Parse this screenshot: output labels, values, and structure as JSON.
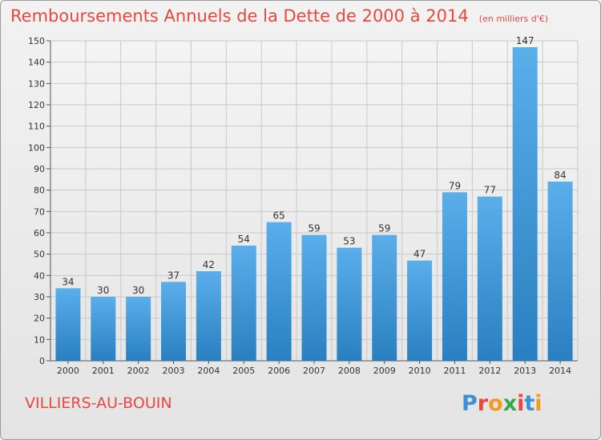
{
  "header": {
    "title": "Remboursements Annuels de la Dette de 2000 à 2014",
    "unit": "(en milliers d'€)"
  },
  "footer": {
    "commune": "VILLIERS-AU-BOUIN",
    "logo_text": "Proxiti"
  },
  "colors": {
    "title": "#e8483f",
    "bar_top": "#5aaeea",
    "bar_bottom": "#2a7fc0",
    "grid": "#c9c9c9"
  },
  "chart_data": {
    "type": "bar",
    "categories": [
      "2000",
      "2001",
      "2002",
      "2003",
      "2004",
      "2005",
      "2006",
      "2007",
      "2008",
      "2009",
      "2010",
      "2011",
      "2012",
      "2013",
      "2014"
    ],
    "values": [
      34,
      30,
      30,
      37,
      42,
      54,
      65,
      59,
      53,
      59,
      47,
      79,
      77,
      147,
      84
    ],
    "ylim": [
      0,
      150
    ],
    "yticks": [
      0,
      10,
      20,
      30,
      40,
      50,
      60,
      70,
      80,
      90,
      100,
      110,
      120,
      130,
      140,
      150
    ],
    "grid": true,
    "data_labels": true
  }
}
